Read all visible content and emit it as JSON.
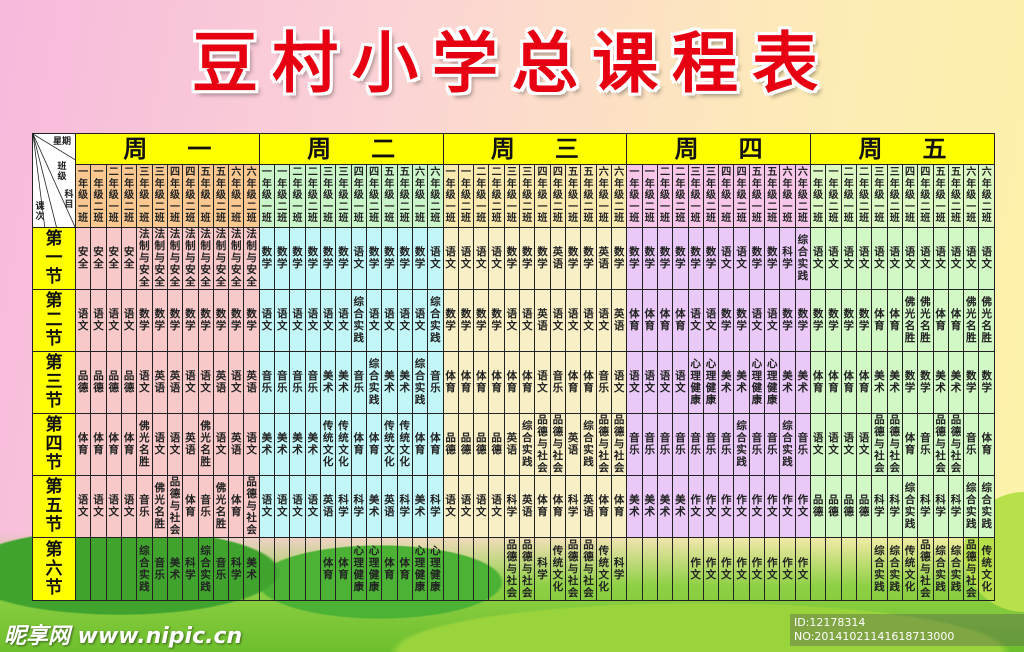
{
  "title": "豆村小学总课程表",
  "corner": {
    "weekday": "星期",
    "class": "班级",
    "subject": "科目",
    "period": "课次"
  },
  "classes": [
    "一年级一班",
    "一年级二班",
    "二年级一班",
    "二年级二班",
    "三年级一班",
    "三年级二班",
    "四年级一班",
    "四年级二班",
    "五年级一班",
    "五年级二班",
    "六年级一班",
    "六年级二班"
  ],
  "periods": [
    "第一节",
    "第二节",
    "第三节",
    "第四节",
    "第五节",
    "第六节"
  ],
  "colors": {
    "title": "#e60012",
    "day_header": "#ffff00",
    "period_label": "#ffff00"
  },
  "days": [
    {
      "name": "周一",
      "header_color": "#fbc891",
      "body_color": "#f9c9c9",
      "schedule": [
        [
          "安全",
          "安全",
          "安全",
          "安全",
          "法制与安全",
          "法制与安全",
          "法制与安全",
          "法制与安全",
          "法制与安全",
          "法制与安全",
          "法制与安全",
          "法制与安全"
        ],
        [
          "语文",
          "语文",
          "语文",
          "语文",
          "数学",
          "数学",
          "数学",
          "数学",
          "数学",
          "数学",
          "数学",
          "数学"
        ],
        [
          "品德",
          "品德",
          "品德",
          "品德",
          "语文",
          "英语",
          "英语",
          "语文",
          "语文",
          "英语",
          "语文",
          "英语"
        ],
        [
          "体育",
          "体育",
          "体育",
          "体育",
          "佛光名胜",
          "语文",
          "语文",
          "英语",
          "佛光名胜",
          "语文",
          "英语",
          "语文"
        ],
        [
          "语文",
          "语文",
          "语文",
          "语文",
          "音乐",
          "佛光名胜",
          "品德与社会",
          "体育",
          "音乐",
          "佛光名胜",
          "体育",
          "品德与社会"
        ],
        [
          "",
          "",
          "",
          "",
          "综合实践",
          "音乐",
          "美术",
          "科学",
          "综合实践",
          "音乐",
          "科学",
          "美术"
        ]
      ]
    },
    {
      "name": "周二",
      "header_color": "#c9f5c9",
      "body_color": "#c3f6f6",
      "schedule": [
        [
          "数学",
          "数学",
          "数学",
          "数学",
          "数学",
          "数学",
          "语文",
          "数学",
          "数学",
          "数学",
          "数学",
          "语文"
        ],
        [
          "语文",
          "语文",
          "语文",
          "语文",
          "语文",
          "语文",
          "综合实践",
          "语文",
          "语文",
          "语文",
          "语文",
          "综合实践"
        ],
        [
          "音乐",
          "音乐",
          "音乐",
          "音乐",
          "美术",
          "美术",
          "音乐",
          "综合实践",
          "美术",
          "美术",
          "综合实践",
          "音乐"
        ],
        [
          "美术",
          "美术",
          "美术",
          "美术",
          "传统文化",
          "传统文化",
          "体育",
          "体育",
          "传统文化",
          "传统文化",
          "体育",
          "体育"
        ],
        [
          "语文",
          "语文",
          "语文",
          "语文",
          "英语",
          "科学",
          "科学",
          "美术",
          "英语",
          "科学",
          "美术",
          "科学"
        ],
        [
          "",
          "",
          "",
          "",
          "体育",
          "体育",
          "心理健康",
          "心理健康",
          "体育",
          "体育",
          "心理健康",
          "心理健康"
        ]
      ]
    },
    {
      "name": "周三",
      "header_color": "#fbeab0",
      "body_color": "#f9efc6",
      "schedule": [
        [
          "语文",
          "语文",
          "语文",
          "语文",
          "数学",
          "数学",
          "数学",
          "英语",
          "数学",
          "数学",
          "英语",
          "数学"
        ],
        [
          "数学",
          "数学",
          "数学",
          "数学",
          "语文",
          "语文",
          "英语",
          "语文",
          "语文",
          "语文",
          "语文",
          "英语"
        ],
        [
          "体育",
          "体育",
          "体育",
          "体育",
          "体育",
          "体育",
          "语文",
          "音乐",
          "体育",
          "体育",
          "音乐",
          "语文"
        ],
        [
          "品德",
          "品德",
          "品德",
          "品德",
          "英语",
          "综合实践",
          "品德与社会",
          "品德与社会",
          "英语",
          "综合实践",
          "品德与社会",
          "品德与社会"
        ],
        [
          "语文",
          "语文",
          "语文",
          "语文",
          "科学",
          "英语",
          "体育",
          "体育",
          "科学",
          "英语",
          "体育",
          "体育"
        ],
        [
          "",
          "",
          "",
          "",
          "品德与社会",
          "品德与社会",
          "科学",
          "传统文化",
          "品德与社会",
          "品德与社会",
          "传统文化",
          "科学"
        ]
      ]
    },
    {
      "name": "周四",
      "header_color": "#f7c6e8",
      "body_color": "#eac8f8",
      "schedule": [
        [
          "数学",
          "数学",
          "数学",
          "数学",
          "数学",
          "数学",
          "语文",
          "语文",
          "数学",
          "数学",
          "科学",
          "综合实践"
        ],
        [
          "体育",
          "体育",
          "体育",
          "体育",
          "语文",
          "语文",
          "数学",
          "数学",
          "语文",
          "语文",
          "数学",
          "数学"
        ],
        [
          "语文",
          "语文",
          "语文",
          "语文",
          "心理健康",
          "心理健康",
          "美术",
          "美术",
          "心理健康",
          "心理健康",
          "美术",
          "美术"
        ],
        [
          "音乐",
          "音乐",
          "音乐",
          "音乐",
          "音乐",
          "音乐",
          "音乐",
          "综合实践",
          "音乐",
          "音乐",
          "综合实践",
          "音乐"
        ],
        [
          "美术",
          "美术",
          "美术",
          "美术",
          "作文",
          "作文",
          "作文",
          "作文",
          "作文",
          "作文",
          "作文",
          "作文"
        ],
        [
          "",
          "",
          "",
          "",
          "作文",
          "作文",
          "作文",
          "作文",
          "作文",
          "作文",
          "作文",
          "作文"
        ]
      ]
    },
    {
      "name": "周五",
      "header_color": "#dcf9c4",
      "body_color": "#d2f8c6",
      "schedule": [
        [
          "语文",
          "语文",
          "语文",
          "语文",
          "语文",
          "语文",
          "语文",
          "语文",
          "语文",
          "语文",
          "语文",
          "语文"
        ],
        [
          "数学",
          "数学",
          "数学",
          "数学",
          "体育",
          "体育",
          "佛光名胜",
          "佛光名胜",
          "体育",
          "体育",
          "佛光名胜",
          "佛光名胜"
        ],
        [
          "体育",
          "体育",
          "体育",
          "体育",
          "美术",
          "美术",
          "数学",
          "数学",
          "美术",
          "美术",
          "数学",
          "数学"
        ],
        [
          "语文",
          "语文",
          "语文",
          "语文",
          "品德与社会",
          "品德与社会",
          "体育",
          "音乐",
          "品德与社会",
          "品德与社会",
          "音乐",
          "体育"
        ],
        [
          "品德",
          "品德",
          "品德",
          "品德",
          "科学",
          "科学",
          "综合实践",
          "科学",
          "科学",
          "科学",
          "综合实践",
          "综合实践"
        ],
        [
          "",
          "",
          "",
          "",
          "综合实践",
          "综合实践",
          "传统文化",
          "品德与社会",
          "综合实践",
          "综合实践",
          "品德与社会",
          "传统文化"
        ]
      ]
    }
  ],
  "watermark": {
    "site": "昵享网 www.nipic.cn",
    "id": "ID:12178314 NO:20141021141618713000"
  }
}
